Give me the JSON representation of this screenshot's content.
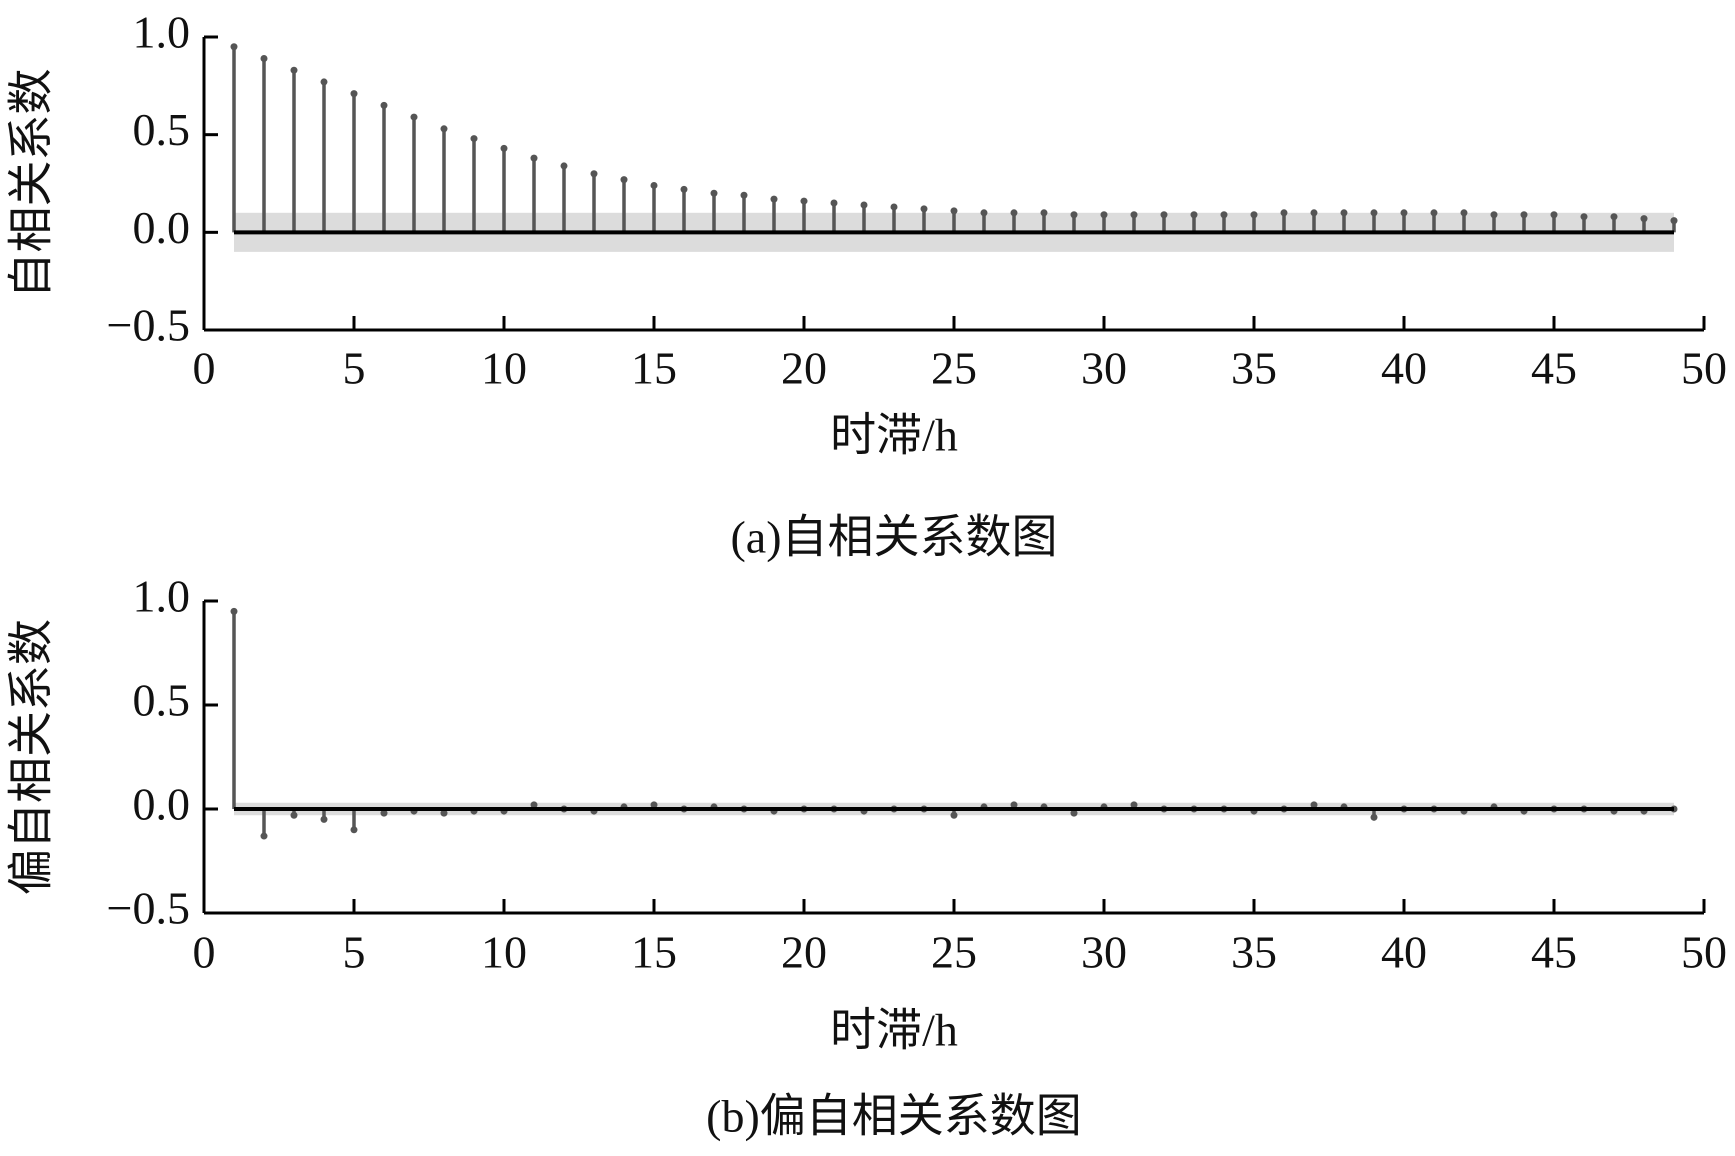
{
  "chart_data": [
    {
      "type": "stem",
      "ylabel": "自相关系数",
      "xlabel": "时滞/h",
      "caption": "(a)自相关系数图",
      "color": "#555555",
      "band_color": "#dcdcdc",
      "conf_band": [
        -0.1,
        0.1
      ],
      "x": [
        1,
        2,
        3,
        4,
        5,
        6,
        7,
        8,
        9,
        10,
        11,
        12,
        13,
        14,
        15,
        16,
        17,
        18,
        19,
        20,
        21,
        22,
        23,
        24,
        25,
        26,
        27,
        28,
        29,
        30,
        31,
        32,
        33,
        34,
        35,
        36,
        37,
        38,
        39,
        40,
        41,
        42,
        43,
        44,
        45,
        46,
        47,
        48,
        49
      ],
      "values": [
        0.95,
        0.89,
        0.83,
        0.77,
        0.71,
        0.65,
        0.59,
        0.53,
        0.48,
        0.43,
        0.38,
        0.34,
        0.3,
        0.27,
        0.24,
        0.22,
        0.2,
        0.19,
        0.17,
        0.16,
        0.15,
        0.14,
        0.13,
        0.12,
        0.11,
        0.1,
        0.1,
        0.1,
        0.09,
        0.09,
        0.09,
        0.09,
        0.09,
        0.09,
        0.09,
        0.1,
        0.1,
        0.1,
        0.1,
        0.1,
        0.1,
        0.1,
        0.09,
        0.09,
        0.09,
        0.08,
        0.08,
        0.07,
        0.06
      ],
      "xlim": [
        0,
        50
      ],
      "ylim": [
        -0.5,
        1
      ],
      "xticks": [
        0,
        5,
        10,
        15,
        20,
        25,
        30,
        35,
        40,
        45,
        50
      ],
      "yticks": [
        {
          "value": 1,
          "label": "1.0"
        },
        {
          "value": 0.5,
          "label": "0.5"
        },
        {
          "value": 0,
          "label": "0.0"
        },
        {
          "value": -0.5,
          "label": "−0.5"
        }
      ]
    },
    {
      "type": "stem",
      "ylabel": "偏自相关系数",
      "xlabel": "时滞/h",
      "caption": "(b)偏自相关系数图",
      "color": "#555555",
      "band_color": "#dcdcdc",
      "conf_band": [
        -0.03,
        0.03
      ],
      "x": [
        1,
        2,
        3,
        4,
        5,
        6,
        7,
        8,
        9,
        10,
        11,
        12,
        13,
        14,
        15,
        16,
        17,
        18,
        19,
        20,
        21,
        22,
        23,
        24,
        25,
        26,
        27,
        28,
        29,
        30,
        31,
        32,
        33,
        34,
        35,
        36,
        37,
        38,
        39,
        40,
        41,
        42,
        43,
        44,
        45,
        46,
        47,
        48,
        49
      ],
      "values": [
        0.95,
        -0.13,
        -0.03,
        -0.05,
        -0.1,
        -0.02,
        -0.01,
        -0.02,
        -0.01,
        -0.01,
        0.02,
        0.0,
        -0.01,
        0.01,
        0.02,
        0.0,
        0.01,
        0.0,
        -0.01,
        0.0,
        0.0,
        -0.01,
        0.0,
        0.0,
        -0.03,
        0.01,
        0.02,
        0.01,
        -0.02,
        0.01,
        0.02,
        0.0,
        0.0,
        0.0,
        -0.01,
        0.0,
        0.02,
        0.01,
        -0.04,
        0.0,
        0.0,
        -0.01,
        0.01,
        -0.01,
        0.0,
        0.0,
        -0.01,
        -0.01,
        0.0
      ],
      "xlim": [
        0,
        50
      ],
      "ylim": [
        -0.5,
        1
      ],
      "xticks": [
        0,
        5,
        10,
        15,
        20,
        25,
        30,
        35,
        40,
        45,
        50
      ],
      "yticks": [
        {
          "value": 1,
          "label": "1.0"
        },
        {
          "value": 0.5,
          "label": "0.5"
        },
        {
          "value": 0,
          "label": "0.0"
        },
        {
          "value": -0.5,
          "label": "−0.5"
        }
      ]
    }
  ]
}
